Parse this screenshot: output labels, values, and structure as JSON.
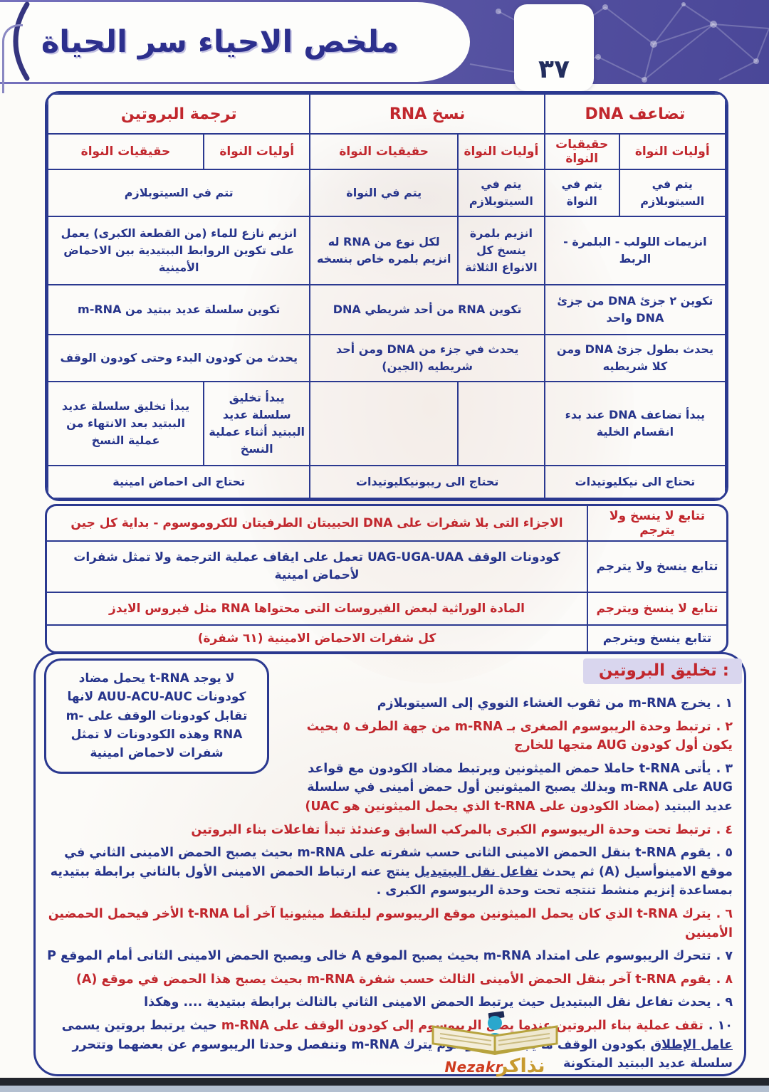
{
  "colors": {
    "red": "#c1272d",
    "blue": "#26348b",
    "navy_border": "#2b3990",
    "banner_purple": "#5a56a5",
    "lavender": "#d9d6ee",
    "gold": "#c79a2f",
    "logo_red": "#ce3b1e"
  },
  "header": {
    "title": "ملخص الاحياء سر الحياة",
    "page_number": "٣٧"
  },
  "table1": {
    "groups": [
      "تضاعف DNA",
      "نسخ RNA",
      "ترجمة البروتين"
    ],
    "sub_pro": "أوليات النواة",
    "sub_eu": "حقيقيات النواة",
    "rows": {
      "location": {
        "dna_pro": "يتم في السيتوبلازم",
        "dna_eu": "يتم في النواة",
        "rna_pro": "يتم في السيتوبلازم",
        "rna_eu": "يتم في النواة",
        "tr": "تتم في السيتوبلازم"
      },
      "enzymes": {
        "dna": "انزيمات اللولب - البلمرة - الربط",
        "rna_pro": "انزيم بلمرة ينسخ كل الانواع الثلاثة",
        "rna_eu": "لكل نوع من RNA له انزيم بلمره خاص بنسخه",
        "tr": "انزيم نازع للماء (من القطعة الكبرى) يعمل على تكوين الروابط الببتيدية بين الاحماض الأمينية"
      },
      "product": {
        "dna": "تكوين ٢ جزئ DNA من جزئ DNA واحد",
        "rna": "تكوين RNA من أحد شريطي DNA",
        "tr": "تكوين سلسلة عديد ببتيد من m-RNA"
      },
      "extent": {
        "dna": "يحدث بطول جزئ DNA ومن كلا شريطيه",
        "rna": "يحدث في جزء من DNA ومن أحد شريطيه (الجين)",
        "tr": "يحدث من كودون البدء وحتى كودون الوقف"
      },
      "timing": {
        "dna": "يبدأ تضاعف DNA عند بدء انقسام الخلية",
        "tr_pro": "يبدأ تخليق سلسلة عديد الببتيد أثناء عملية النسخ",
        "tr_eu": "يبدأ تخليق سلسلة عديد الببتيد بعد الانتهاء من عملية النسخ"
      },
      "needs": {
        "dna": "تحتاج الى نيكليوتيدات",
        "rna": "تحتاج الى ريبونيكليوتيدات",
        "tr": "تحتاج الى احماض امينية"
      }
    }
  },
  "table2": {
    "rows": [
      {
        "label": "تتابع لا ينسخ ولا يترجم",
        "content": "الاجزاء التى بلا شفرات على DNA الحبيبتان الطرفيتان للكروموسوم - بداية كل جين",
        "label_color": "red",
        "content_color": "red"
      },
      {
        "label": "تتابع ينسخ ولا يترجم",
        "content": "كودونات الوقف UAG-UGA-UAA تعمل على ايقاف عملية الترجمة ولا تمثل شفرات لأحماض امينية",
        "label_color": "blue",
        "content_color": "blue"
      },
      {
        "label": "تتابع لا ينسخ ويترجم",
        "content": "المادة الوراثية لبعض الفيروسات التى محتواها RNA مثل فيروس الايدز",
        "label_color": "red",
        "content_color": "red"
      },
      {
        "label": "تتابع ينسخ ويترجم",
        "content": "كل شفرات الاحماض الامينية (٦١ شفرة)",
        "label_color": "blue",
        "content_color": "red"
      }
    ]
  },
  "protein": {
    "heading": "تخليق البروتين :",
    "note": {
      "text": "لا يوجد t-RNA يحمل مضاد كودونات AUU-ACU-AUC لانها تقابل كودونات الوقف على m-RNA وهذه الكودونات لا تمثل شفرات لاحماض امينية"
    },
    "steps": [
      {
        "num": "١ .",
        "num_color": "blue",
        "segments": [
          {
            "text": "يخرج m-RNA من ثقوب الغشاء النووي إلى السيتوبلازم",
            "color": "blue"
          }
        ]
      },
      {
        "num": "٢ .",
        "num_color": "red",
        "segments": [
          {
            "text": "ترتبط وحدة الريبوسوم الصغرى بـ m-RNA من جهة الطرف ٥ بحيث يكون أول كودون AUG متجها للخارج",
            "color": "red"
          }
        ]
      },
      {
        "num": "٣ .",
        "num_color": "blue",
        "segments": [
          {
            "text": "يأتى t-RNA حاملا حمض الميثونين ويرتبط مضاد الكودون مع قواعد AUG على m-RNA وبذلك يصبح الميثونين أول حمض أمينى في سلسلة عديد الببتيد ",
            "color": "blue"
          },
          {
            "text": "(مضاد الكودون على t-RNA الذي يحمل الميثونين هو UAC)",
            "color": "red"
          }
        ]
      },
      {
        "num": "٤ .",
        "num_color": "red",
        "segments": [
          {
            "text": "ترتبط تحت وحدة الريبوسوم الكبرى بالمركب السابق وعندئذ تبدأ تفاعلات بناء البروتين",
            "color": "red"
          }
        ]
      },
      {
        "num": "٥ .",
        "num_color": "blue",
        "segments": [
          {
            "text": "يقوم t-RNA بنقل الحمض الامينى الثانى حسب شفرته على m-RNA بحيث يصبح الحمض الامينى الثاني في موقع الامينوأسيل (A) ثم يحدث ",
            "color": "blue"
          },
          {
            "text": "تفاعل نقل الببتيديل",
            "color": "blue",
            "underline": true
          },
          {
            "text": " ينتج عنه ارتباط الحمض الامينى الأول بالثاني برابطة ببتيديه بمساعدة إنزيم منشط تنتجه تحت وحدة الريبوسوم الكبرى .",
            "color": "blue"
          }
        ]
      },
      {
        "num": "٦ .",
        "num_color": "red",
        "segments": [
          {
            "text": "يترك t-RNA الذي كان يحمل الميثونين موقع الريبوسوم ليلتقط ميثيونيا آخر أما t-RNA الأخر فيحمل الحمضين الأمينين",
            "color": "red"
          }
        ]
      },
      {
        "num": "٧ .",
        "num_color": "blue",
        "segments": [
          {
            "text": "تتحرك الريبوسوم على امتداد m-RNA بحيث يصبح الموقع A خالى ويصبح الحمض الامينى الثانى أمام الموقع P",
            "color": "blue"
          }
        ]
      },
      {
        "num": "٨ .",
        "num_color": "red",
        "segments": [
          {
            "text": "يقوم t-RNA آخر بنقل الحمض الأمينى الثالث حسب شفرة m-RNA بحيث يصبح هذا الحمض في موقع (A)",
            "color": "red"
          }
        ]
      },
      {
        "num": "٩ .",
        "num_color": "blue",
        "segments": [
          {
            "text": "يحدث تفاعل نقل الببتيديل حيث يرتبط الحمض الامينى الثاني بالثالث برابطة ببتيدية .... وهكذا",
            "color": "blue"
          }
        ]
      },
      {
        "num": "١٠ .",
        "num_color": "blue",
        "segments": [
          {
            "text": "تقف عملية بناء البروتين عندما يصل الريبوسوم إلى كودون الوقف على m-RNA ",
            "color": "red"
          },
          {
            "text": "حيث يرتبط بروتين يسمى ",
            "color": "blue"
          },
          {
            "text": "عامل الإطلاق",
            "color": "blue",
            "underline": true
          },
          {
            "text": " بكودون الوقف ما يجعل الريبوسوم يترك m-RNA وتنفصل وحدتا الريبوسوم عن بعضهما وتتحرر سلسلة عديد الببتيد المتكونة",
            "color": "blue"
          }
        ]
      }
    ]
  },
  "watermark": {
    "latin": "Nezakr",
    "arabic": "نذاكر"
  }
}
